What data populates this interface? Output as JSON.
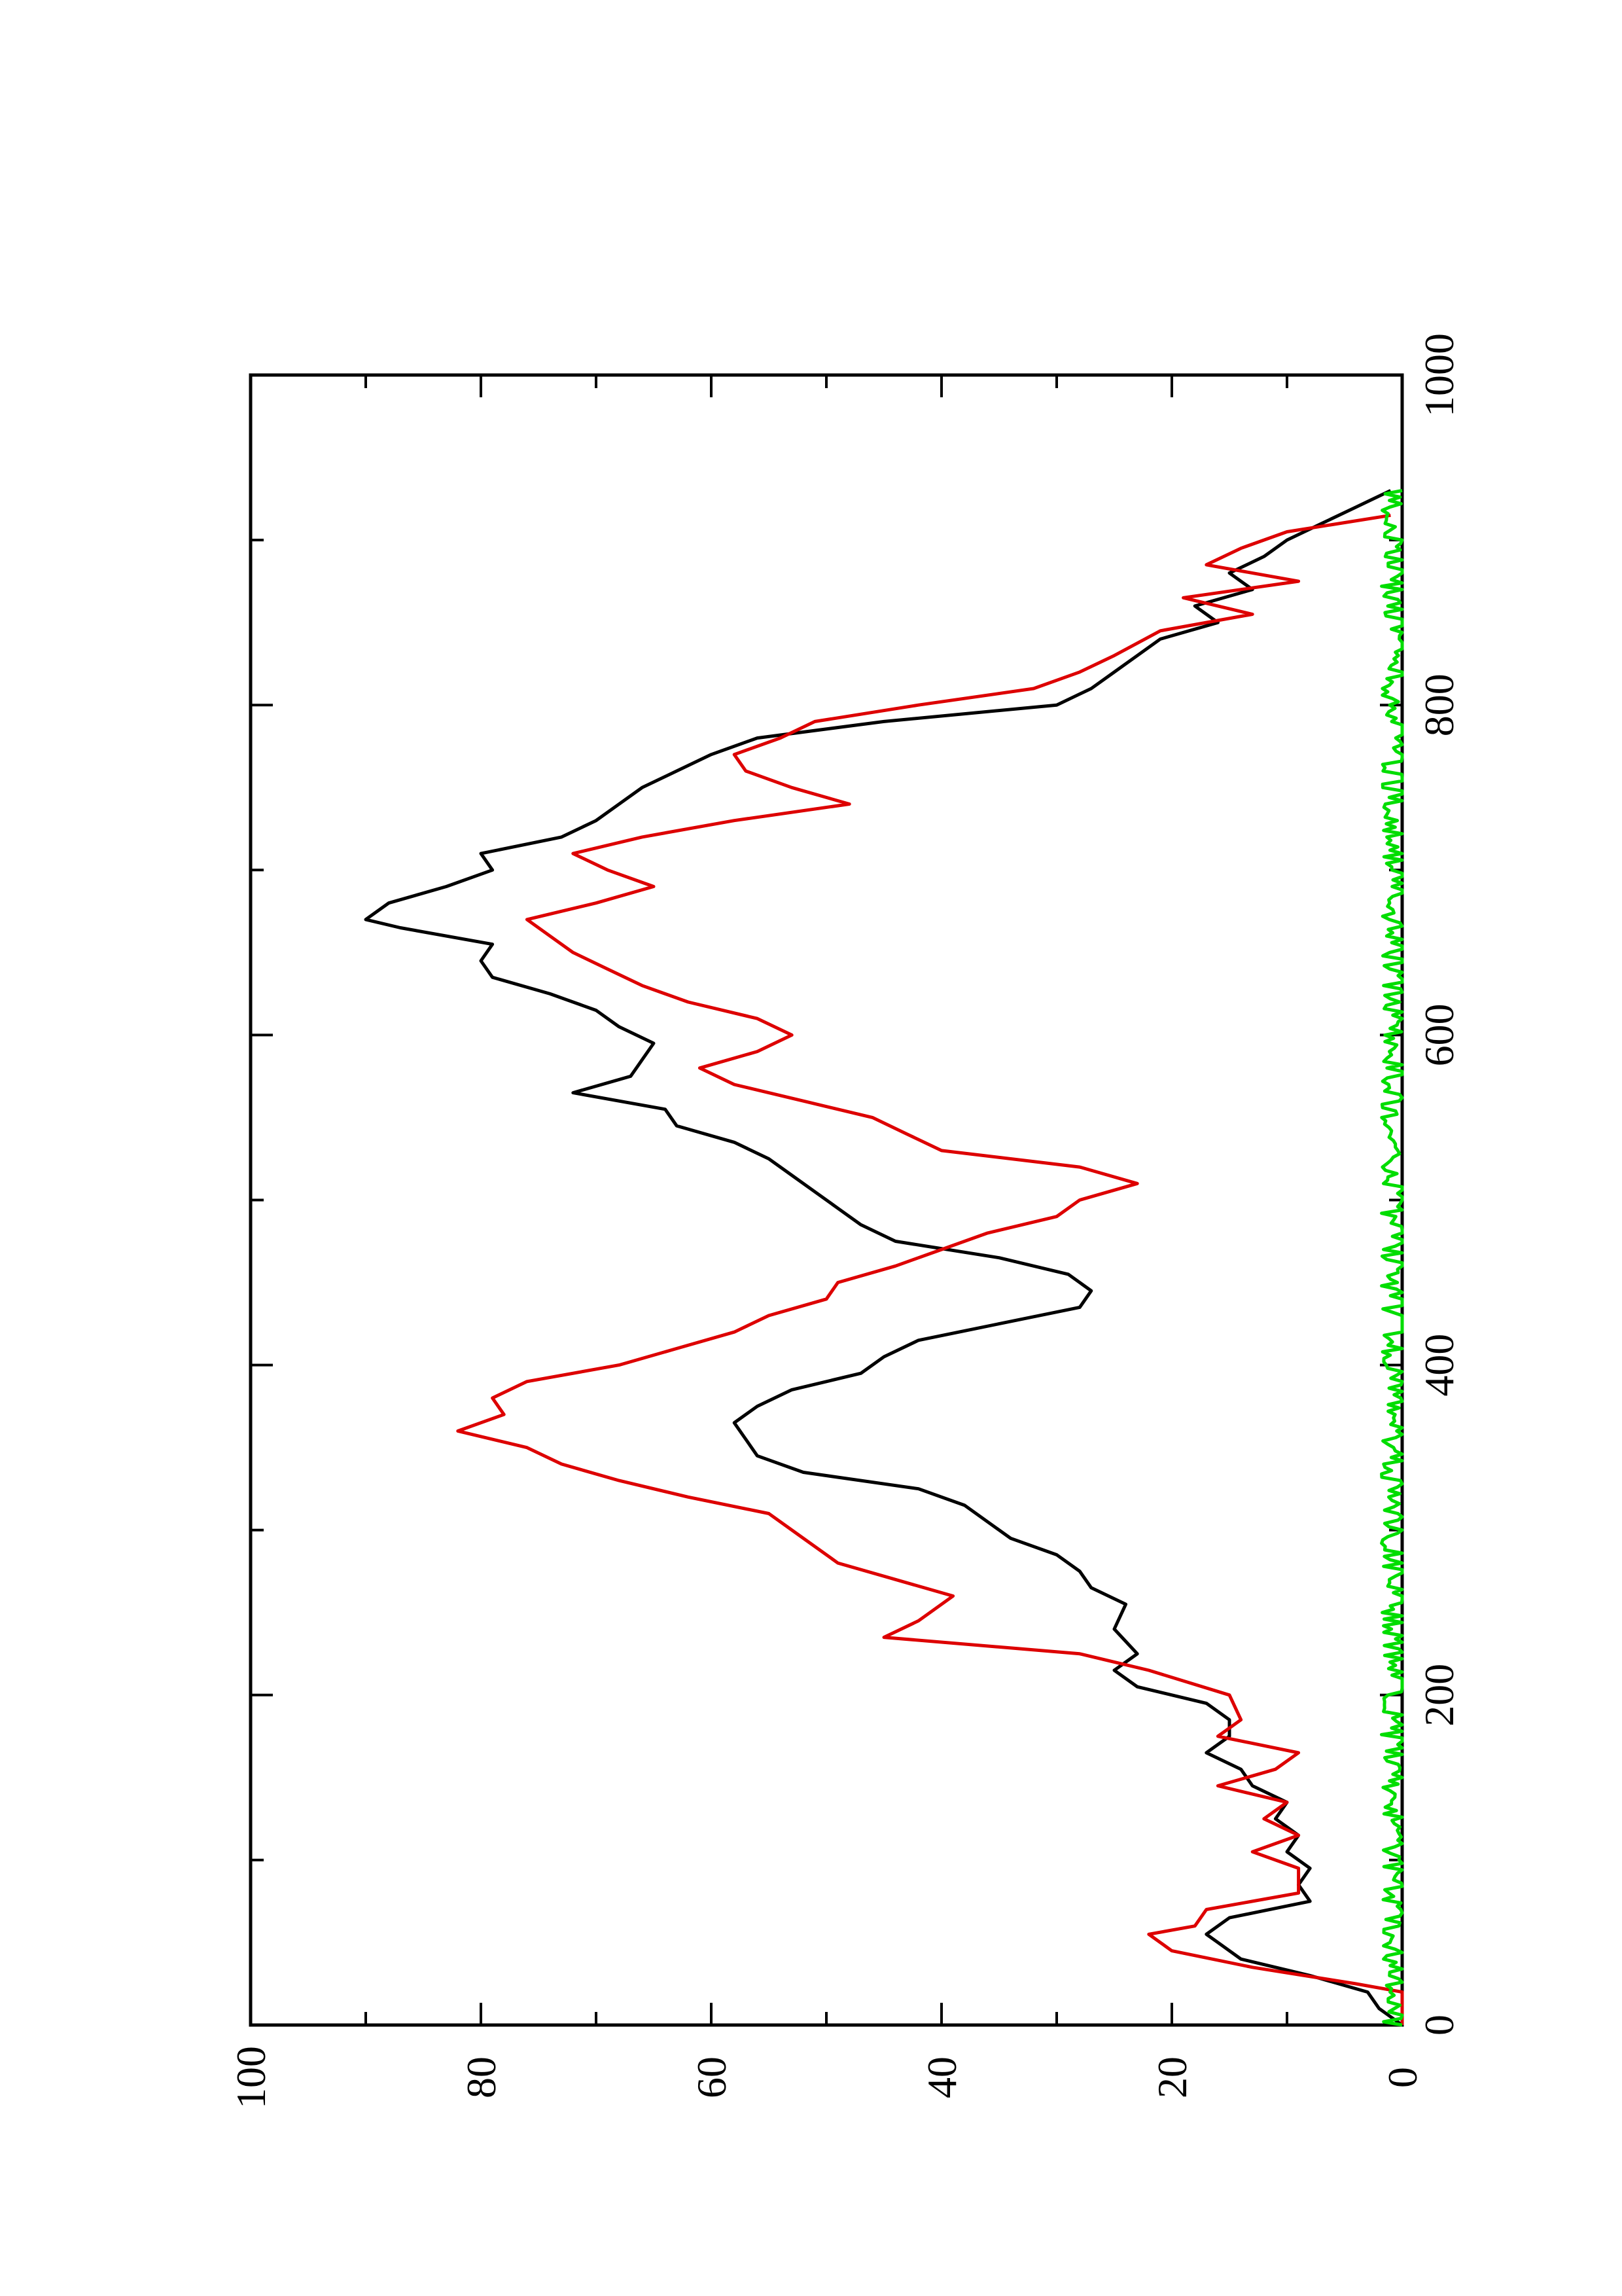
{
  "chart_data": {
    "type": "line",
    "orientation": "rotated-90-ccw",
    "xlim": [
      0,
      1000
    ],
    "ylim": [
      0,
      100
    ],
    "x_ticks": [
      "0",
      "200",
      "400",
      "600",
      "800",
      "1000"
    ],
    "y_ticks": [
      "0",
      "20",
      "40",
      "60",
      "80",
      "100"
    ],
    "x_minor_ticks": [
      100,
      300,
      500,
      700,
      900
    ],
    "y_minor_ticks": [
      10,
      30,
      50,
      70,
      90
    ],
    "grid": false,
    "legend": "none",
    "series": [
      {
        "color": "#000000",
        "points": [
          [
            0,
            0
          ],
          [
            10,
            2
          ],
          [
            20,
            3
          ],
          [
            30,
            8
          ],
          [
            40,
            14
          ],
          [
            50,
            16
          ],
          [
            55,
            17
          ],
          [
            65,
            15
          ],
          [
            75,
            8
          ],
          [
            85,
            9
          ],
          [
            95,
            8
          ],
          [
            105,
            10
          ],
          [
            115,
            9
          ],
          [
            125,
            11
          ],
          [
            135,
            10
          ],
          [
            145,
            13
          ],
          [
            155,
            14
          ],
          [
            165,
            17
          ],
          [
            175,
            15
          ],
          [
            185,
            15
          ],
          [
            195,
            17
          ],
          [
            205,
            23
          ],
          [
            215,
            25
          ],
          [
            225,
            23
          ],
          [
            240,
            25
          ],
          [
            255,
            24
          ],
          [
            265,
            27
          ],
          [
            275,
            28
          ],
          [
            285,
            30
          ],
          [
            295,
            34
          ],
          [
            305,
            36
          ],
          [
            315,
            38
          ],
          [
            325,
            42
          ],
          [
            335,
            52
          ],
          [
            345,
            56
          ],
          [
            355,
            57
          ],
          [
            365,
            58
          ],
          [
            375,
            56
          ],
          [
            385,
            53
          ],
          [
            395,
            47
          ],
          [
            405,
            45
          ],
          [
            415,
            42
          ],
          [
            425,
            35
          ],
          [
            435,
            28
          ],
          [
            445,
            27
          ],
          [
            455,
            29
          ],
          [
            465,
            35
          ],
          [
            475,
            44
          ],
          [
            485,
            47
          ],
          [
            495,
            49
          ],
          [
            505,
            51
          ],
          [
            515,
            53
          ],
          [
            525,
            55
          ],
          [
            535,
            58
          ],
          [
            545,
            63
          ],
          [
            555,
            64
          ],
          [
            565,
            72
          ],
          [
            575,
            67
          ],
          [
            585,
            66
          ],
          [
            595,
            65
          ],
          [
            605,
            68
          ],
          [
            615,
            70
          ],
          [
            625,
            74
          ],
          [
            635,
            79
          ],
          [
            645,
            80
          ],
          [
            655,
            79
          ],
          [
            665,
            87
          ],
          [
            670,
            90
          ],
          [
            680,
            88
          ],
          [
            690,
            83
          ],
          [
            700,
            79
          ],
          [
            710,
            80
          ],
          [
            720,
            73
          ],
          [
            730,
            70
          ],
          [
            740,
            68
          ],
          [
            750,
            66
          ],
          [
            760,
            63
          ],
          [
            770,
            60
          ],
          [
            780,
            56
          ],
          [
            790,
            45
          ],
          [
            800,
            30
          ],
          [
            810,
            27
          ],
          [
            820,
            25
          ],
          [
            830,
            23
          ],
          [
            840,
            21
          ],
          [
            850,
            16
          ],
          [
            860,
            18
          ],
          [
            870,
            13
          ],
          [
            880,
            15
          ],
          [
            890,
            12
          ],
          [
            900,
            10
          ],
          [
            910,
            7
          ],
          [
            920,
            4
          ],
          [
            930,
            1
          ]
        ]
      },
      {
        "color": "#dd0000",
        "points": [
          [
            0,
            0
          ],
          [
            20,
            0
          ],
          [
            25,
            4
          ],
          [
            35,
            13
          ],
          [
            45,
            20
          ],
          [
            55,
            22
          ],
          [
            60,
            18
          ],
          [
            70,
            17
          ],
          [
            80,
            9
          ],
          [
            95,
            9
          ],
          [
            105,
            13
          ],
          [
            115,
            9
          ],
          [
            125,
            12
          ],
          [
            135,
            10
          ],
          [
            145,
            16
          ],
          [
            155,
            11
          ],
          [
            165,
            9
          ],
          [
            175,
            16
          ],
          [
            185,
            14
          ],
          [
            200,
            15
          ],
          [
            215,
            22
          ],
          [
            225,
            28
          ],
          [
            235,
            45
          ],
          [
            245,
            42
          ],
          [
            260,
            39
          ],
          [
            270,
            44
          ],
          [
            280,
            49
          ],
          [
            295,
            52
          ],
          [
            310,
            55
          ],
          [
            320,
            62
          ],
          [
            330,
            68
          ],
          [
            340,
            73
          ],
          [
            350,
            76
          ],
          [
            360,
            82
          ],
          [
            370,
            78
          ],
          [
            380,
            79
          ],
          [
            390,
            76
          ],
          [
            400,
            68
          ],
          [
            410,
            63
          ],
          [
            420,
            58
          ],
          [
            430,
            55
          ],
          [
            440,
            50
          ],
          [
            450,
            49
          ],
          [
            460,
            44
          ],
          [
            470,
            40
          ],
          [
            480,
            36
          ],
          [
            490,
            30
          ],
          [
            500,
            28
          ],
          [
            510,
            23
          ],
          [
            520,
            28
          ],
          [
            530,
            40
          ],
          [
            540,
            43
          ],
          [
            550,
            46
          ],
          [
            560,
            52
          ],
          [
            570,
            58
          ],
          [
            580,
            61
          ],
          [
            590,
            56
          ],
          [
            600,
            53
          ],
          [
            610,
            56
          ],
          [
            620,
            62
          ],
          [
            630,
            66
          ],
          [
            640,
            69
          ],
          [
            650,
            72
          ],
          [
            660,
            74
          ],
          [
            670,
            76
          ],
          [
            680,
            70
          ],
          [
            690,
            65
          ],
          [
            700,
            69
          ],
          [
            710,
            72
          ],
          [
            720,
            66
          ],
          [
            730,
            58
          ],
          [
            740,
            48
          ],
          [
            750,
            53
          ],
          [
            760,
            57
          ],
          [
            770,
            58
          ],
          [
            780,
            54
          ],
          [
            790,
            51
          ],
          [
            800,
            42
          ],
          [
            810,
            32
          ],
          [
            820,
            28
          ],
          [
            830,
            25
          ],
          [
            845,
            21
          ],
          [
            855,
            13
          ],
          [
            865,
            19
          ],
          [
            875,
            9
          ],
          [
            885,
            17
          ],
          [
            895,
            14
          ],
          [
            905,
            10
          ],
          [
            915,
            1
          ]
        ]
      },
      {
        "color": "#00dd00",
        "noise_amplitude": 1.2,
        "base": 0.6,
        "x_start": 0,
        "x_end": 930
      }
    ]
  }
}
